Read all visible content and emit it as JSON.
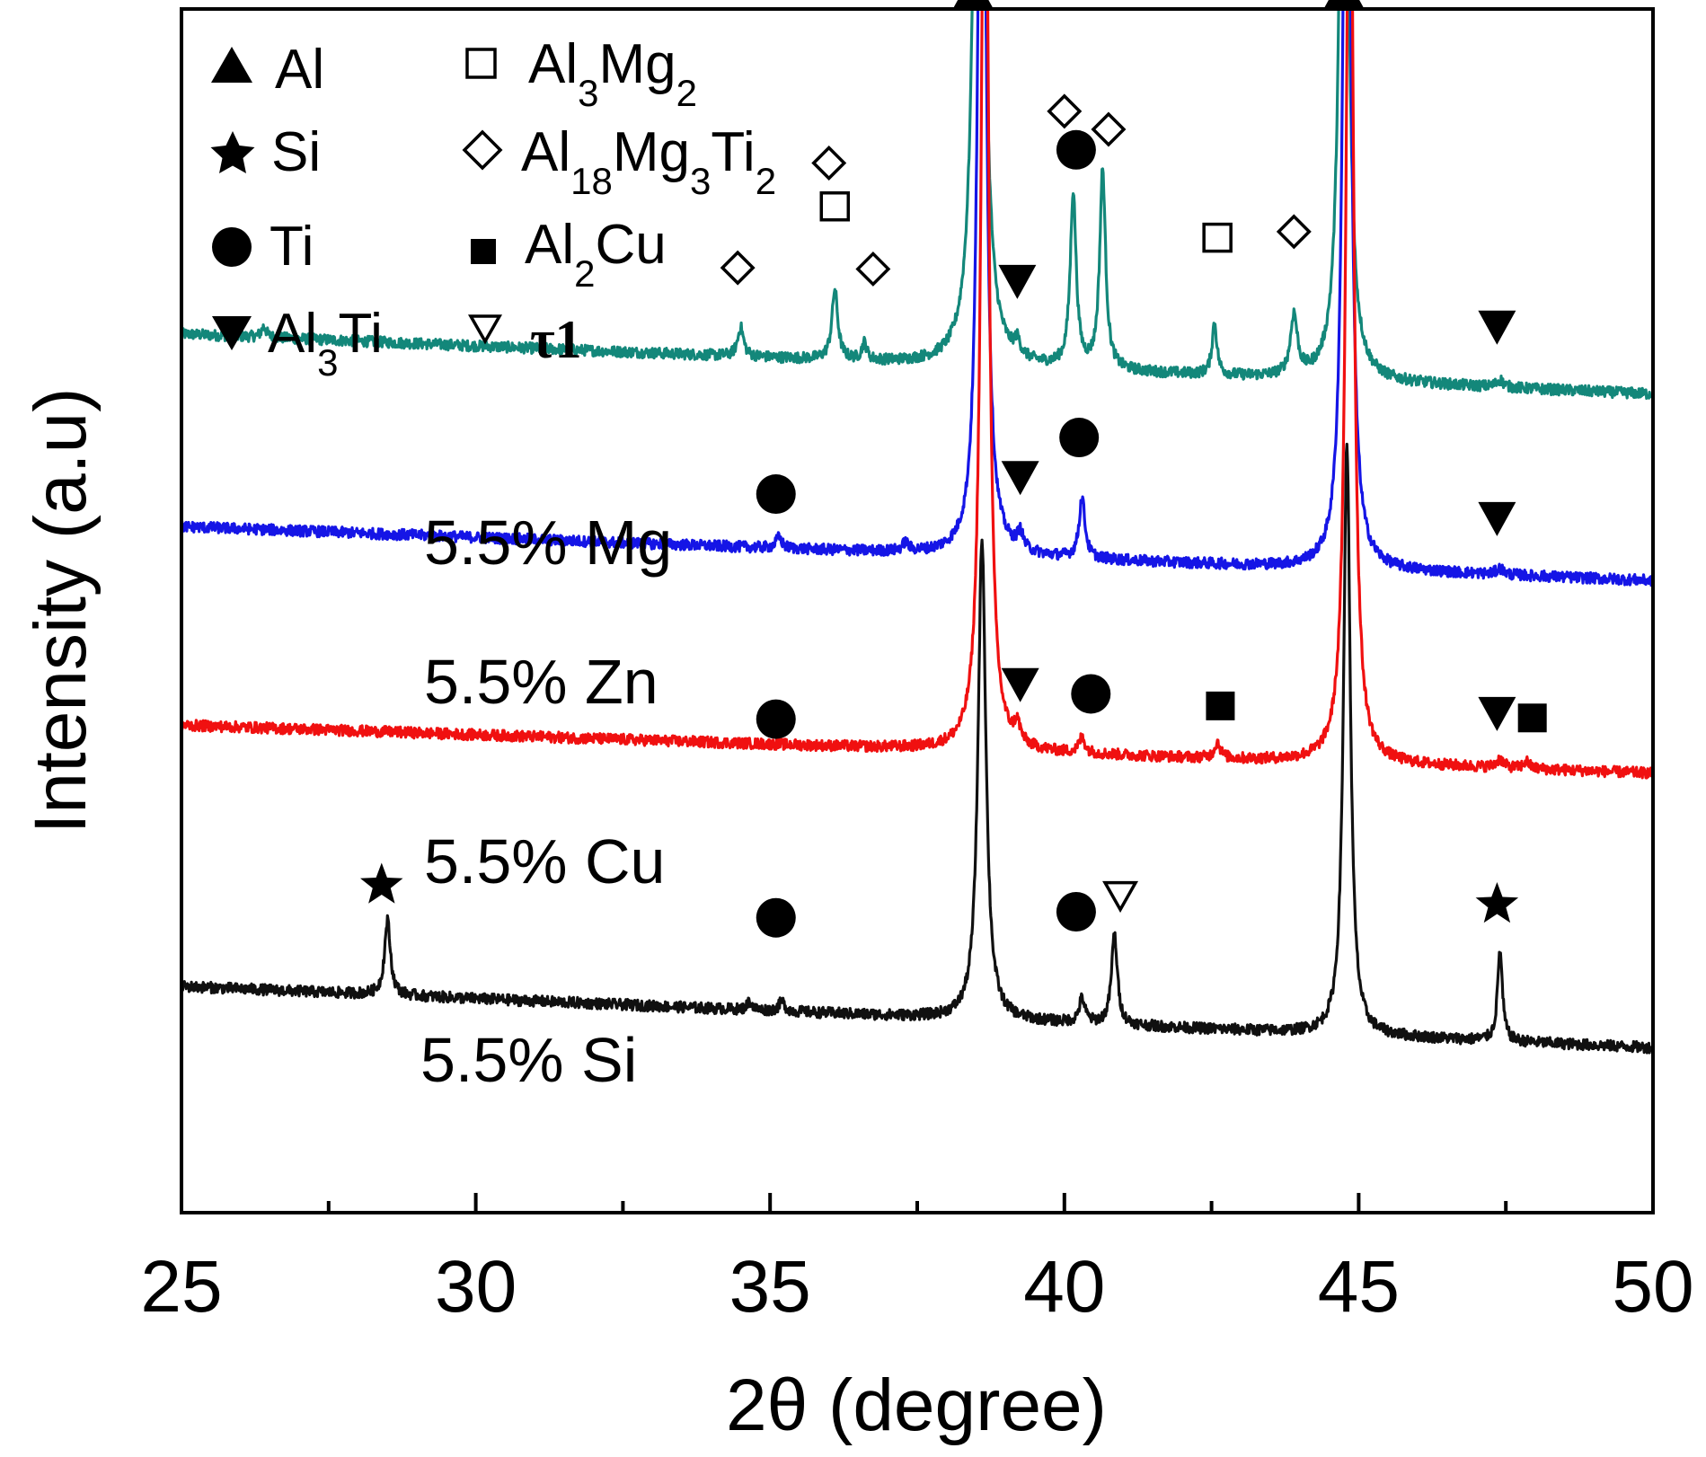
{
  "chart_data": {
    "type": "line",
    "title": "",
    "xlabel": "2θ (degree)",
    "ylabel": "Intensity (a.u)",
    "xlim": [
      25,
      50
    ],
    "ylim": [
      0,
      100
    ],
    "xticks": [
      "25",
      "30",
      "35",
      "40",
      "45",
      "50"
    ],
    "grid": false,
    "legend_position": "top-left",
    "legend": [
      {
        "symbol": "triangle-up-filled",
        "label": "Al",
        "subs": []
      },
      {
        "symbol": "star-filled",
        "label": "Si",
        "subs": []
      },
      {
        "symbol": "circle-filled",
        "label": "Ti",
        "subs": []
      },
      {
        "symbol": "triangle-down-filled",
        "label": "Al",
        "label_rest": "Ti",
        "subs": [
          "3"
        ]
      },
      {
        "symbol": "square-open",
        "label": "Al",
        "subs": [
          "3",
          "2"
        ],
        "mid": "Mg"
      },
      {
        "symbol": "diamond-open",
        "label": "Al",
        "subs": [
          "18",
          "3",
          "2"
        ],
        "mid": "Mg",
        "mid2": "Ti"
      },
      {
        "symbol": "square-filled",
        "label": "Al",
        "subs": [
          "2"
        ],
        "mid": "Cu"
      },
      {
        "symbol": "triangle-down-open",
        "label": "τ1",
        "subs": []
      }
    ],
    "legend_text": {
      "al": "Al",
      "si": "Si",
      "ti": "Ti",
      "al3ti_a": "Al",
      "al3ti_sub": "3",
      "al3ti_b": "Ti",
      "al3mg2_a": "Al",
      "al3mg2_s1": "3",
      "al3mg2_b": "Mg",
      "al3mg2_s2": "2",
      "ternary_a": "Al",
      "ternary_s1": "18",
      "ternary_b": "Mg",
      "ternary_s2": "3",
      "ternary_c": "Ti",
      "ternary_s3": "2",
      "al2cu_a": "Al",
      "al2cu_s1": "2",
      "al2cu_b": "Cu",
      "tau": "τ1"
    },
    "series": [
      {
        "name": "5.5% Mg",
        "color": "#13877a",
        "baseline": [
          [
            25,
            73
          ],
          [
            50,
            68
          ]
        ],
        "peaks": [
          [
            26.4,
            0.9,
            0.05
          ],
          [
            34.5,
            2.4,
            0.06
          ],
          [
            36.1,
            5.8,
            0.06
          ],
          [
            36.6,
            1.4,
            0.05
          ],
          [
            38.55,
            80,
            0.09
          ],
          [
            39.2,
            1.2,
            0.06
          ],
          [
            40.15,
            14.5,
            0.06
          ],
          [
            40.65,
            16.5,
            0.06
          ],
          [
            42.55,
            4.3,
            0.05
          ],
          [
            43.9,
            5.0,
            0.07
          ],
          [
            44.75,
            70,
            0.08
          ],
          [
            47.4,
            0.6,
            0.07
          ]
        ],
        "markers": [
          {
            "shape": "diamond-open",
            "x": 34.45,
            "y": 78.5
          },
          {
            "shape": "square-open",
            "x": 36.1,
            "y": 83.6
          },
          {
            "shape": "diamond-open",
            "x": 36.0,
            "y": 87.2
          },
          {
            "shape": "diamond-open",
            "x": 36.75,
            "y": 78.4
          },
          {
            "shape": "triangle-up-filled",
            "x": 38.45,
            "y": 101.5
          },
          {
            "shape": "triangle-down-filled",
            "x": 39.2,
            "y": 77.4
          },
          {
            "shape": "circle-filled",
            "x": 40.2,
            "y": 88.3
          },
          {
            "shape": "diamond-open",
            "x": 40.0,
            "y": 91.5
          },
          {
            "shape": "diamond-open",
            "x": 40.75,
            "y": 90.0
          },
          {
            "shape": "square-open",
            "x": 42.6,
            "y": 81.0
          },
          {
            "shape": "diamond-open",
            "x": 43.9,
            "y": 81.5
          },
          {
            "shape": "triangle-up-filled",
            "x": 44.75,
            "y": 101.5
          },
          {
            "shape": "triangle-down-filled",
            "x": 47.35,
            "y": 73.6
          }
        ]
      },
      {
        "name": "5.5% Zn",
        "color": "#1515e6",
        "baseline": [
          [
            25,
            57
          ],
          [
            50,
            52.5
          ]
        ],
        "peaks": [
          [
            35.15,
            0.9,
            0.06
          ],
          [
            37.3,
            0.7,
            0.06
          ],
          [
            38.6,
            90,
            0.07
          ],
          [
            39.25,
            1.4,
            0.06
          ],
          [
            40.3,
            5.0,
            0.06
          ],
          [
            44.8,
            90,
            0.07
          ],
          [
            47.4,
            0.5,
            0.07
          ]
        ],
        "markers": [
          {
            "shape": "circle-filled",
            "x": 35.1,
            "y": 59.7
          },
          {
            "shape": "triangle-down-filled",
            "x": 39.25,
            "y": 61.1
          },
          {
            "shape": "circle-filled",
            "x": 40.25,
            "y": 64.4
          },
          {
            "shape": "triangle-down-filled",
            "x": 47.35,
            "y": 57.7
          }
        ]
      },
      {
        "name": "5.5% Cu",
        "color": "#f01010",
        "baseline": [
          [
            25,
            40.5
          ],
          [
            50,
            36.5
          ]
        ],
        "peaks": [
          [
            38.65,
            92,
            0.07
          ],
          [
            39.2,
            1.5,
            0.06
          ],
          [
            40.3,
            1.3,
            0.06
          ],
          [
            42.6,
            1.3,
            0.06
          ],
          [
            44.85,
            90,
            0.07
          ],
          [
            47.4,
            0.7,
            0.07
          ],
          [
            47.85,
            0.6,
            0.06
          ]
        ],
        "markers": [
          {
            "shape": "circle-filled",
            "x": 35.1,
            "y": 41.0
          },
          {
            "shape": "triangle-down-filled",
            "x": 39.25,
            "y": 43.9
          },
          {
            "shape": "circle-filled",
            "x": 40.45,
            "y": 43.1
          },
          {
            "shape": "square-filled",
            "x": 42.65,
            "y": 42.1
          },
          {
            "shape": "triangle-down-filled",
            "x": 47.35,
            "y": 41.5
          },
          {
            "shape": "square-filled",
            "x": 47.95,
            "y": 41.1
          }
        ]
      },
      {
        "name": "5.5% Si",
        "color": "#101010",
        "baseline": [
          [
            25,
            18.8
          ],
          [
            50,
            13.7
          ]
        ],
        "peaks": [
          [
            28.5,
            6.2,
            0.06
          ],
          [
            34.65,
            0.7,
            0.05
          ],
          [
            35.2,
            0.8,
            0.06
          ],
          [
            38.6,
            40,
            0.08
          ],
          [
            40.3,
            2.0,
            0.06
          ],
          [
            40.85,
            7.5,
            0.06
          ],
          [
            44.8,
            49,
            0.07
          ],
          [
            47.4,
            7.5,
            0.05
          ]
        ],
        "markers": [
          {
            "shape": "star-filled",
            "x": 28.4,
            "y": 27.2
          },
          {
            "shape": "circle-filled",
            "x": 35.1,
            "y": 24.5
          },
          {
            "shape": "triangle-down-open",
            "x": 40.95,
            "y": 26.3
          },
          {
            "shape": "circle-filled",
            "x": 40.2,
            "y": 25.0
          },
          {
            "shape": "star-filled",
            "x": 47.35,
            "y": 25.6
          }
        ]
      }
    ],
    "annotations": [
      {
        "text": "5.5% Mg",
        "x": 31.7,
        "y": 77.5
      },
      {
        "text": "5.5% Zn",
        "x": 31.7,
        "y": 65.5
      },
      {
        "text": "5.5% Cu",
        "x": 31.7,
        "y": 50.3
      },
      {
        "text": "5.5% Si",
        "x": 31.6,
        "y": 33.3
      }
    ]
  }
}
